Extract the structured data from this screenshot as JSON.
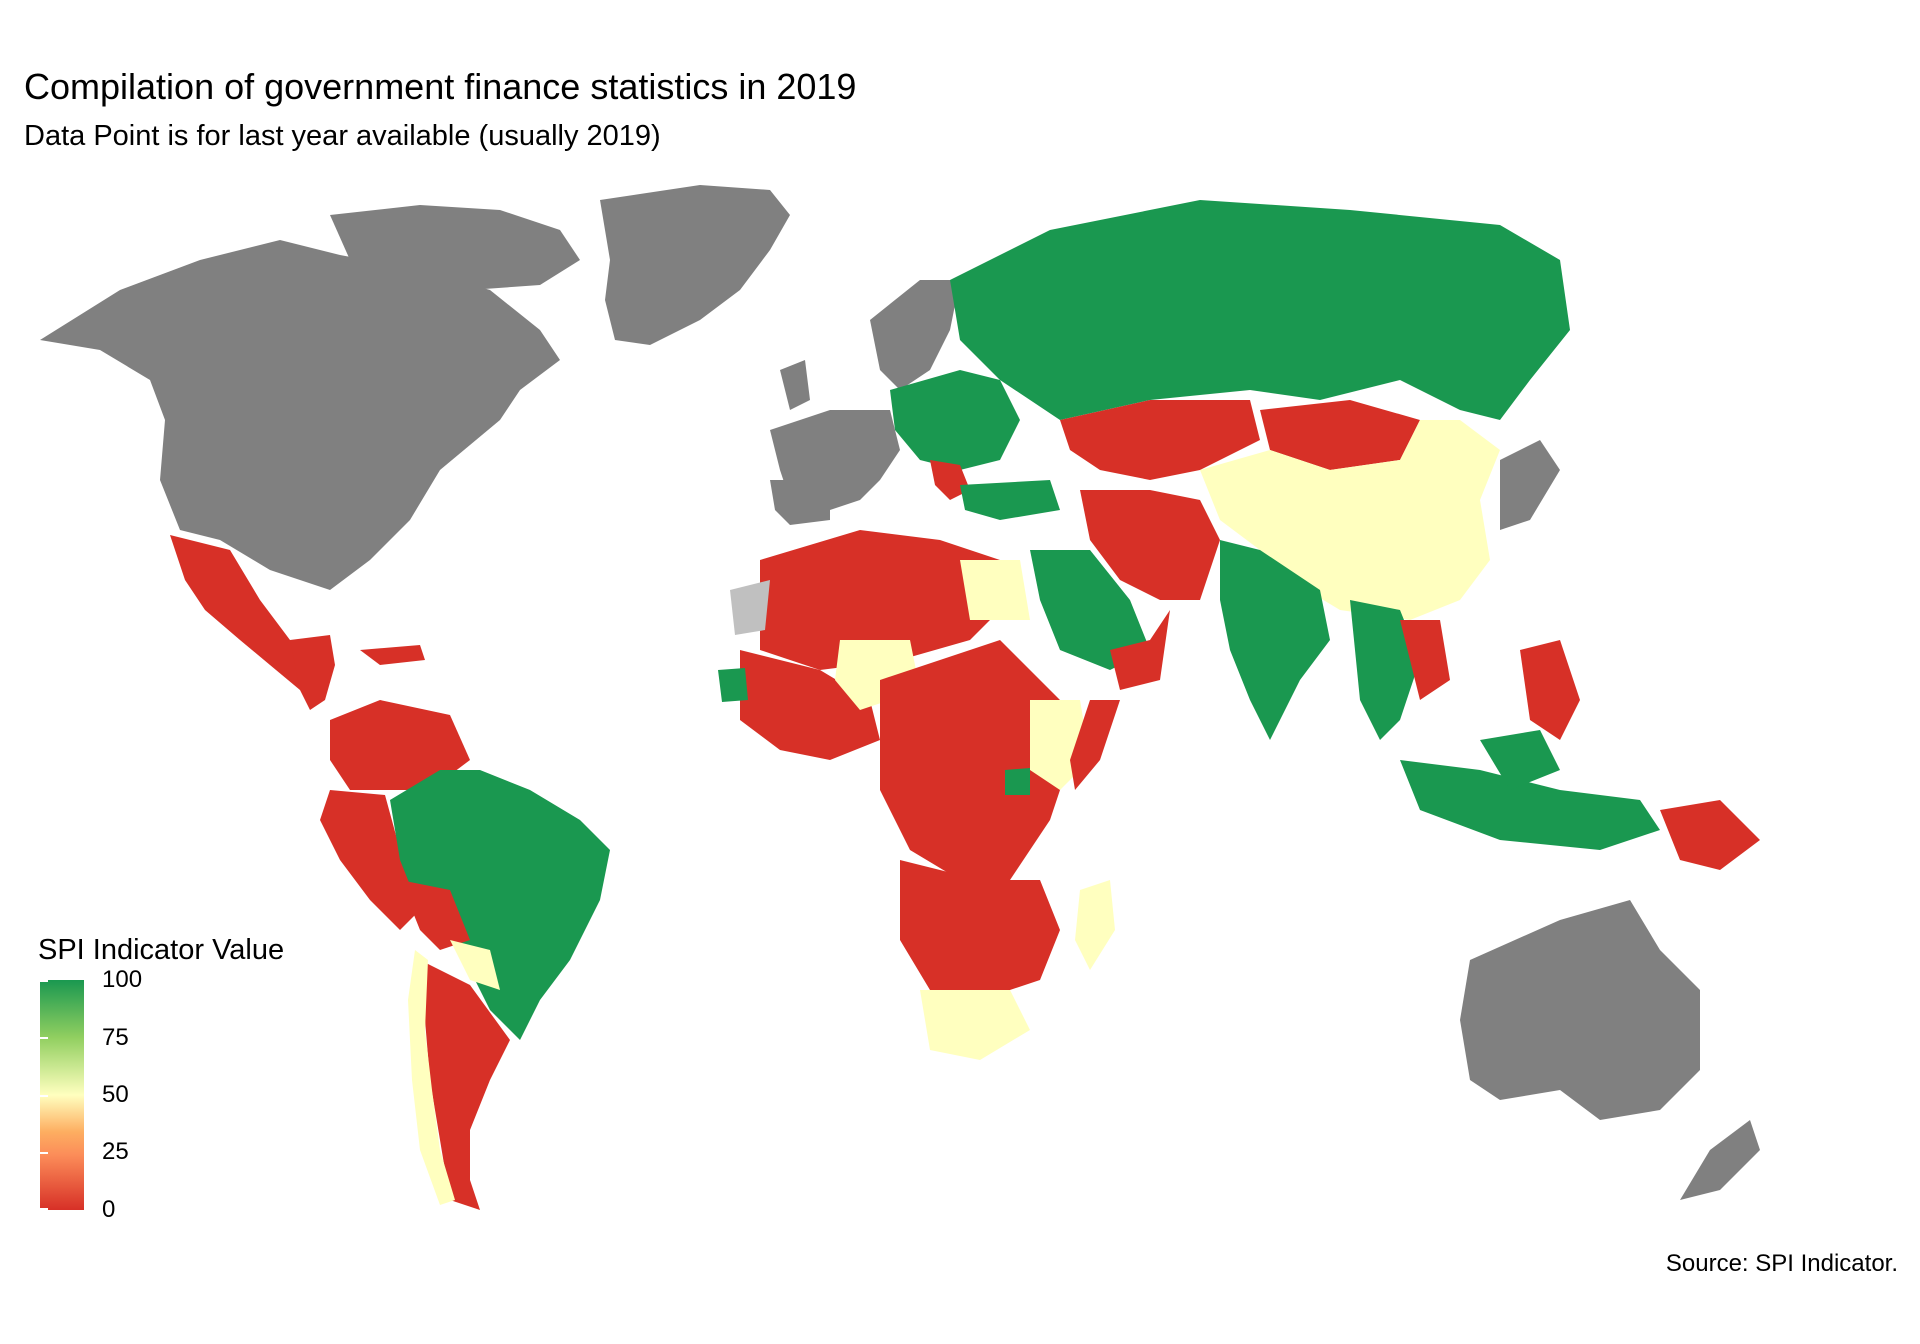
{
  "title": "Compilation of government finance statistics in 2019",
  "subtitle": "Data Point is for last year available (usually 2019)",
  "legend": {
    "title": "SPI Indicator Value",
    "ticks": [
      "100",
      "75",
      "50",
      "25",
      "0"
    ],
    "colors": {
      "high": "#1a9850",
      "mid": "#ffffbf",
      "low": "#d73027",
      "no_data": "#808080"
    }
  },
  "source": "Source: SPI Indicator.",
  "map_fill": {
    "green_countries": [
      "Russia",
      "Brazil",
      "India",
      "Saudi Arabia",
      "Indonesia",
      "Turkey",
      "Ukraine",
      "Belarus",
      "Kazakhstan-south",
      "Myanmar",
      "Malaysia",
      "Uganda",
      "Senegal"
    ],
    "yellow_countries": [
      "China",
      "Egypt",
      "Kenya",
      "Ethiopia",
      "South Africa",
      "Namibia",
      "Botswana",
      "Madagascar",
      "Chile",
      "Bolivia-south",
      "Mali",
      "Niger",
      "Nigeria",
      "Afghanistan",
      "Vietnam"
    ],
    "red_countries": [
      "Mexico",
      "Argentina",
      "Peru",
      "Colombia",
      "Venezuela",
      "Algeria",
      "Libya",
      "Sudan",
      "DR Congo",
      "Angola",
      "Tanzania",
      "Mozambique",
      "Zambia",
      "Kazakhstan",
      "Mongolia",
      "Iran",
      "Pakistan",
      "Philippines",
      "Papua New Guinea",
      "Thailand",
      "Somalia"
    ],
    "grey_countries": [
      "Canada",
      "United States",
      "Greenland",
      "Australia",
      "New Zealand",
      "Japan",
      "Western Europe",
      "Scandinavia"
    ]
  }
}
